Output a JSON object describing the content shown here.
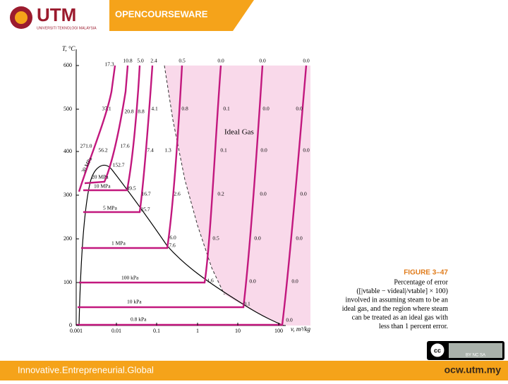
{
  "header": {
    "logo": "UTM",
    "university": "UNIVERSITI TEKNOLOGI MALAYSIA",
    "title": "OPENCOURSEWARE"
  },
  "figure": {
    "y_axis_label": "T, °C",
    "x_axis_label": "v, m³/kg",
    "y_ticks": [
      "0",
      "100",
      "200",
      "300",
      "400",
      "500",
      "600"
    ],
    "x_ticks": [
      "0.001",
      "0.01",
      "0.1",
      "1",
      "10",
      "100"
    ],
    "region_label": "Ideal Gas",
    "pressures": [
      "30 MPa",
      "20 MPa",
      "10 MPa",
      "5 MPa",
      "1 MPa",
      "100 kPa",
      "10 kPa",
      "0.8 kPa"
    ],
    "errors": [
      "17.3",
      "10.8",
      "5.0",
      "2.4",
      "0.5",
      "0.0",
      "0.0",
      "0.0",
      "37.1",
      "20.8",
      "8.8",
      "4.1",
      "0.8",
      "0.1",
      "0.0",
      "0.0",
      "271.0",
      "56.2",
      "17.6",
      "7.4",
      "1.3",
      "0.1",
      "0.0",
      "0.0",
      "152.7",
      "49.5",
      "16.7",
      "2.6",
      "0.2",
      "0.0",
      "0.0",
      "25.7",
      "6.0",
      "7.6",
      "0.5",
      "0.0",
      "0.0",
      "1.6",
      "0.0",
      "0.0",
      "0.1",
      "0.0"
    ]
  },
  "caption": {
    "label": "FIGURE 3–47",
    "lines": [
      "Percentage of error",
      "([|vtable − videal|/vtable] × 100)",
      "involved in assuming steam to be an",
      "ideal gas, and the region where steam",
      "can be treated as an ideal gas with",
      "less than 1 percent error."
    ]
  },
  "license": "BY NC SA",
  "footer": {
    "tagline": "Innovative.Entrepreneurial.Global",
    "url": "ocw.utm.my"
  }
}
